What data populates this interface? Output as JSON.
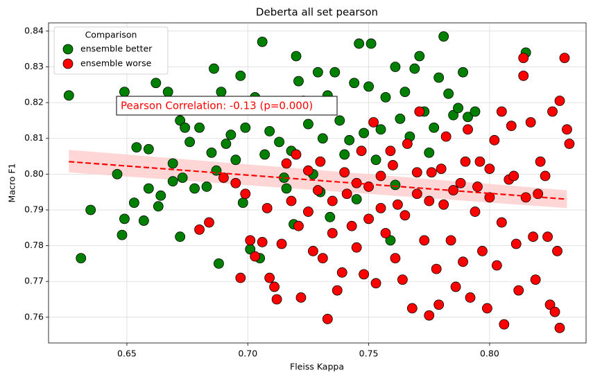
{
  "chart_data": {
    "type": "scatter",
    "title": "Deberta all set pearson",
    "x_label": "Fleiss Kappa",
    "y_label": "Macro F1",
    "xlim": [
      0.6176,
      0.8399
    ],
    "ylim": [
      0.7528,
      0.8423
    ],
    "xticks": [
      0.65,
      {
        "value": 0.7,
        "label": "0.70"
      },
      0.75,
      {
        "value": 0.8,
        "label": "0.80"
      }
    ],
    "yticks": [
      0.76,
      0.77,
      0.78,
      0.79,
      {
        "value": 0.8,
        "label": "0.80"
      },
      0.81,
      0.82,
      0.83,
      0.84
    ],
    "grid": true,
    "legend_title": "Comparison",
    "legend_position": "upper left",
    "annotation": "Pearson Correlation: -0.13 (p=0.000)",
    "annotation_color": "red",
    "trend": {
      "color": "red",
      "band_color": "#ffcccc",
      "x": [
        0.626,
        0.832
      ],
      "y": [
        0.8035,
        0.793
      ],
      "lower": [
        0.8005,
        0.7905
      ],
      "upper": [
        0.8068,
        0.7955
      ]
    },
    "series": [
      {
        "name": "ensemble better",
        "color": "green",
        "x": [
          0.626,
          0.631,
          0.635,
          0.646,
          0.648,
          0.649,
          0.649,
          0.653,
          0.654,
          0.657,
          0.659,
          0.659,
          0.662,
          0.663,
          0.664,
          0.667,
          0.669,
          0.669,
          0.672,
          0.672,
          0.673,
          0.674,
          0.676,
          0.678,
          0.68,
          0.683,
          0.685,
          0.686,
          0.687,
          0.688,
          0.689,
          0.691,
          0.693,
          0.695,
          0.697,
          0.698,
          0.699,
          0.701,
          0.703,
          0.705,
          0.706,
          0.707,
          0.709,
          0.711,
          0.713,
          0.716,
          0.718,
          0.719,
          0.72,
          0.721,
          0.723,
          0.725,
          0.727,
          0.729,
          0.731,
          0.733,
          0.734,
          0.736,
          0.738,
          0.74,
          0.742,
          0.744,
          0.746,
          0.748,
          0.75,
          0.751,
          0.753,
          0.755,
          0.757,
          0.759,
          0.761,
          0.763,
          0.765,
          0.767,
          0.769,
          0.771,
          0.773,
          0.775,
          0.777,
          0.779,
          0.781,
          0.783,
          0.785,
          0.787,
          0.789,
          0.791,
          0.794,
          0.815,
          0.761,
          0.745,
          0.73,
          0.715
        ],
        "values": [
          0.822,
          0.7765,
          0.79,
          0.8,
          0.783,
          0.823,
          0.7875,
          0.792,
          0.8075,
          0.787,
          0.796,
          0.807,
          0.8255,
          0.791,
          0.794,
          0.823,
          0.803,
          0.798,
          0.815,
          0.7825,
          0.799,
          0.813,
          0.809,
          0.796,
          0.813,
          0.7965,
          0.806,
          0.8295,
          0.801,
          0.775,
          0.823,
          0.8085,
          0.811,
          0.804,
          0.8275,
          0.792,
          0.813,
          0.779,
          0.8215,
          0.7765,
          0.837,
          0.8055,
          0.812,
          0.818,
          0.809,
          0.796,
          0.8065,
          0.786,
          0.833,
          0.826,
          0.8205,
          0.814,
          0.8,
          0.8285,
          0.81,
          0.822,
          0.788,
          0.8285,
          0.815,
          0.8055,
          0.8095,
          0.8255,
          0.8365,
          0.8115,
          0.8245,
          0.8365,
          0.804,
          0.8125,
          0.8215,
          0.7815,
          0.83,
          0.8155,
          0.823,
          0.8105,
          0.8295,
          0.833,
          0.8175,
          0.806,
          0.813,
          0.827,
          0.8385,
          0.8225,
          0.8165,
          0.8185,
          0.8285,
          0.816,
          0.8175,
          0.834,
          0.797,
          0.793,
          0.795,
          0.799
        ]
      },
      {
        "name": "ensemble worse",
        "color": "red",
        "x": [
          0.68,
          0.684,
          0.69,
          0.695,
          0.697,
          0.699,
          0.701,
          0.703,
          0.706,
          0.708,
          0.709,
          0.711,
          0.712,
          0.714,
          0.716,
          0.718,
          0.721,
          0.722,
          0.725,
          0.727,
          0.729,
          0.731,
          0.733,
          0.735,
          0.737,
          0.739,
          0.741,
          0.743,
          0.745,
          0.747,
          0.748,
          0.75,
          0.752,
          0.753,
          0.755,
          0.757,
          0.759,
          0.761,
          0.762,
          0.764,
          0.766,
          0.768,
          0.77,
          0.771,
          0.773,
          0.775,
          0.776,
          0.778,
          0.779,
          0.781,
          0.782,
          0.784,
          0.786,
          0.788,
          0.789,
          0.791,
          0.792,
          0.794,
          0.796,
          0.797,
          0.799,
          0.8,
          0.802,
          0.803,
          0.805,
          0.806,
          0.808,
          0.809,
          0.811,
          0.812,
          0.814,
          0.815,
          0.817,
          0.818,
          0.819,
          0.821,
          0.823,
          0.824,
          0.825,
          0.826,
          0.827,
          0.828,
          0.829,
          0.829,
          0.831,
          0.832,
          0.833,
          0.814,
          0.805,
          0.79,
          0.78,
          0.77,
          0.76,
          0.75,
          0.74,
          0.73,
          0.72,
          0.81,
          0.8,
          0.785,
          0.765,
          0.755,
          0.745,
          0.795,
          0.775,
          0.82,
          0.735,
          0.725
        ],
        "values": [
          0.7845,
          0.7865,
          0.799,
          0.7975,
          0.771,
          0.7945,
          0.7815,
          0.777,
          0.781,
          0.7905,
          0.771,
          0.7685,
          0.765,
          0.7805,
          0.803,
          0.7925,
          0.7855,
          0.7655,
          0.801,
          0.7785,
          0.7955,
          0.7765,
          0.7595,
          0.7835,
          0.7675,
          0.7725,
          0.7945,
          0.7855,
          0.7795,
          0.8065,
          0.772,
          0.7875,
          0.8145,
          0.7695,
          0.7995,
          0.7835,
          0.8065,
          0.7765,
          0.7915,
          0.7705,
          0.8085,
          0.7625,
          0.7945,
          0.8175,
          0.7815,
          0.7605,
          0.8005,
          0.7735,
          0.7635,
          0.7915,
          0.8105,
          0.7815,
          0.7685,
          0.7975,
          0.7755,
          0.8125,
          0.7655,
          0.7895,
          0.8035,
          0.7785,
          0.7625,
          0.7935,
          0.8095,
          0.7745,
          0.7865,
          0.758,
          0.7985,
          0.8135,
          0.7805,
          0.7675,
          0.8325,
          0.7935,
          0.8145,
          0.7825,
          0.7705,
          0.8035,
          0.7995,
          0.7825,
          0.7635,
          0.8175,
          0.7615,
          0.7785,
          0.757,
          0.8205,
          0.8325,
          0.8125,
          0.8085,
          0.8275,
          0.8175,
          0.8035,
          0.8015,
          0.8005,
          0.8025,
          0.7965,
          0.8005,
          0.8035,
          0.8055,
          0.7995,
          0.8015,
          0.7955,
          0.7885,
          0.7905,
          0.7975,
          0.7965,
          0.7925,
          0.7945,
          0.7925,
          0.7895
        ]
      }
    ]
  }
}
